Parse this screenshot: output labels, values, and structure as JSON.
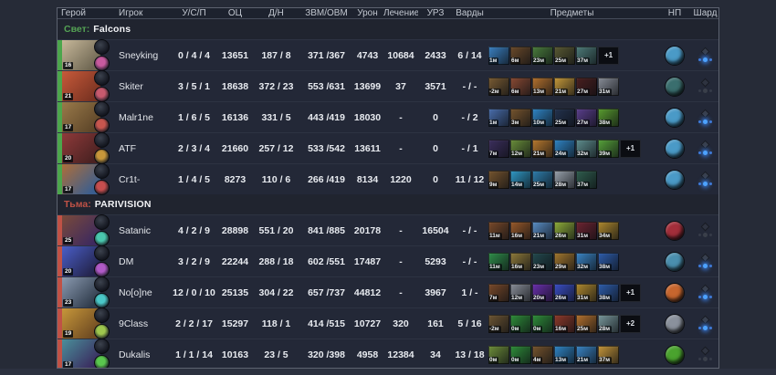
{
  "table": {
    "columns": [
      {
        "key": "hero",
        "label": "Герой"
      },
      {
        "key": "player",
        "label": "Игрок"
      },
      {
        "key": "kda",
        "label": "У/С/П"
      },
      {
        "key": "networth",
        "label": "ОЦ"
      },
      {
        "key": "lastHits",
        "label": "Д/Н"
      },
      {
        "key": "gpmxpm",
        "label": "ЗВМ/ОВМ"
      },
      {
        "key": "damage",
        "label": "Урон"
      },
      {
        "key": "healing",
        "label": "Лечение"
      },
      {
        "key": "buildings",
        "label": "УРЗ"
      },
      {
        "key": "wards",
        "label": "Варды"
      },
      {
        "key": "items",
        "label": "Предметы"
      },
      {
        "key": "neutral",
        "label": "НП"
      },
      {
        "key": "shard",
        "label": "Шард"
      }
    ],
    "teams": [
      {
        "side_label": "Свет:",
        "name": "Falcons",
        "side_color": "#54a254",
        "bar_color": "#4ca64c",
        "players": [
          {
            "name": "Sneyking",
            "level": "16",
            "kda": "0 / 4 / 4",
            "networth": "13651",
            "lh_dn": "187 / 8",
            "gpm_xpm": "371 /367",
            "damage": "4743",
            "healing": "10684",
            "buildings": "2433",
            "wards": "6 / 14",
            "portrait": [
              "#c7b89a",
              "#6e6652"
            ],
            "medal_color": "#c75a9e",
            "items": [
              {
                "t": "1м",
                "c": "#3b82c4"
              },
              {
                "t": "6м",
                "c": "#6b4a2a"
              },
              {
                "t": "23м",
                "c": "#4a7d3c"
              },
              {
                "t": "25м",
                "c": "#5a5a33"
              },
              {
                "t": "37м",
                "c": "#4e7d7a"
              }
            ],
            "backpack": "+1",
            "neutral_color": "#4a9ac7",
            "shard": true
          },
          {
            "name": "Skiter",
            "level": "21",
            "kda": "3 / 5 / 1",
            "networth": "18638",
            "lh_dn": "372 / 23",
            "gpm_xpm": "553 /631",
            "damage": "13699",
            "healing": "37",
            "buildings": "3571",
            "wards": "- / -",
            "portrait": [
              "#c75a3a",
              "#7a3322"
            ],
            "medal_color": "#c75a6e",
            "items": [
              {
                "t": "-2м",
                "c": "#7a5c33"
              },
              {
                "t": "6м",
                "c": "#8a4a33"
              },
              {
                "t": "13м",
                "c": "#b5722e"
              },
              {
                "t": "21м",
                "c": "#c79a3a"
              },
              {
                "t": "27м",
                "c": "#4a1f1f"
              },
              {
                "t": "31м",
                "c": "#8a8f99"
              }
            ],
            "backpack": null,
            "neutral_color": "#3a6e6e",
            "shard": false
          },
          {
            "name": "Malr1ne",
            "level": "17",
            "kda": "1 / 6 / 5",
            "networth": "16136",
            "lh_dn": "331 / 5",
            "gpm_xpm": "443 /419",
            "damage": "18030",
            "healing": "-",
            "buildings": "0",
            "wards": "- / 2",
            "portrait": [
              "#9a7a4a",
              "#5e4629"
            ],
            "medal_color": "#c7564e",
            "items": [
              {
                "t": "1м",
                "c": "#4a6fae"
              },
              {
                "t": "3м",
                "c": "#77552e"
              },
              {
                "t": "10м",
                "c": "#2f86c7"
              },
              {
                "t": "25м",
                "c": "#23324e"
              },
              {
                "t": "27м",
                "c": "#5b3f8e"
              },
              {
                "t": "38м",
                "c": "#5a9e2f"
              }
            ],
            "backpack": null,
            "neutral_color": "#4a9ac7",
            "shard": true
          },
          {
            "name": "ATF",
            "level": "20",
            "kda": "2 / 3 / 4",
            "networth": "21660",
            "lh_dn": "257 / 12",
            "gpm_xpm": "533 /542",
            "damage": "13611",
            "healing": "-",
            "buildings": "0",
            "wards": "- / 1",
            "portrait": [
              "#8f3a3a",
              "#4a2222"
            ],
            "medal_color": "#c7973a",
            "items": [
              {
                "t": "7м",
                "c": "#3c2f5e"
              },
              {
                "t": "12м",
                "c": "#6a8f3a"
              },
              {
                "t": "21м",
                "c": "#b97a2e"
              },
              {
                "t": "24м",
                "c": "#2f86c7"
              },
              {
                "t": "32м",
                "c": "#5f8f8f"
              },
              {
                "t": "39м",
                "c": "#57a33a"
              }
            ],
            "backpack": "+1",
            "neutral_color": "#4a9ac7",
            "shard": true
          },
          {
            "name": "Cr1t-",
            "level": "17",
            "kda": "1 / 4 / 5",
            "networth": "8273",
            "lh_dn": "110 / 6",
            "gpm_xpm": "266 /419",
            "damage": "8134",
            "healing": "1220",
            "buildings": "0",
            "wards": "11 / 12",
            "portrait": [
              "#ae6e3a",
              "#3a5e8f"
            ],
            "medal_color": "#c74e4e",
            "items": [
              {
                "t": "9м",
                "c": "#77552e"
              },
              {
                "t": "14м",
                "c": "#2f9ac7"
              },
              {
                "t": "25м",
                "c": "#2e7fae"
              },
              {
                "t": "28м",
                "c": "#9aa3ad"
              },
              {
                "t": "37м",
                "c": "#2f5e4e"
              }
            ],
            "backpack": null,
            "neutral_color": "#4a9ac7",
            "shard": true
          }
        ]
      },
      {
        "side_label": "Тьма:",
        "name": "PARIVISION",
        "side_color": "#c05246",
        "bar_color": "#c05246",
        "players": [
          {
            "name": "Satanic",
            "level": "25",
            "kda": "4 / 2 / 9",
            "networth": "28898",
            "lh_dn": "551 / 20",
            "gpm_xpm": "841 /885",
            "damage": "20178",
            "healing": "-",
            "buildings": "16504",
            "wards": "- / -",
            "portrait": [
              "#7a4a3a",
              "#3e2a5e"
            ],
            "medal_color": "#4ac7ae",
            "items": [
              {
                "t": "11м",
                "c": "#7a4a2a"
              },
              {
                "t": "16м",
                "c": "#9a5a2a"
              },
              {
                "t": "21м",
                "c": "#5a8fc7"
              },
              {
                "t": "26м",
                "c": "#8fae3a"
              },
              {
                "t": "31м",
                "c": "#6e2431"
              },
              {
                "t": "34м",
                "c": "#b08a2e"
              }
            ],
            "backpack": null,
            "neutral_color": "#a32e3a",
            "shard": false
          },
          {
            "name": "DM",
            "level": "20",
            "kda": "3 / 2 / 9",
            "networth": "22244",
            "lh_dn": "288 / 18",
            "gpm_xpm": "602 /551",
            "damage": "17487",
            "healing": "-",
            "buildings": "5293",
            "wards": "- / -",
            "portrait": [
              "#4a5ec7",
              "#23234a"
            ],
            "medal_color": "#b05ac7",
            "items": [
              {
                "t": "11м",
                "c": "#2f8f4a"
              },
              {
                "t": "16м",
                "c": "#8f7a3a"
              },
              {
                "t": "23м",
                "c": "#23494e"
              },
              {
                "t": "29м",
                "c": "#a3772e"
              },
              {
                "t": "32м",
                "c": "#3a86c7"
              },
              {
                "t": "38м",
                "c": "#2e5eae"
              }
            ],
            "backpack": null,
            "neutral_color": "#4a8fae",
            "shard": true
          },
          {
            "name": "No[o]ne",
            "level": "23",
            "kda": "12 / 0 / 10",
            "networth": "25135",
            "lh_dn": "304 / 22",
            "gpm_xpm": "657 /737",
            "damage": "44812",
            "healing": "-",
            "buildings": "3967",
            "wards": "1 / -",
            "portrait": [
              "#8a9ab0",
              "#2e3a4a"
            ],
            "medal_color": "#4ac7c7",
            "items": [
              {
                "t": "7м",
                "c": "#7a4a2a"
              },
              {
                "t": "12м",
                "c": "#8a8f99"
              },
              {
                "t": "20м",
                "c": "#6a2fae"
              },
              {
                "t": "26м",
                "c": "#3a4ec7"
              },
              {
                "t": "31м",
                "c": "#b08a2e"
              },
              {
                "t": "38м",
                "c": "#2e5eae"
              }
            ],
            "backpack": "+1",
            "neutral_color": "#c7662e",
            "shard": true
          },
          {
            "name": "9Class",
            "level": "19",
            "kda": "2 / 2 / 17",
            "networth": "15297",
            "lh_dn": "118 / 1",
            "gpm_xpm": "414 /515",
            "damage": "10727",
            "healing": "320",
            "buildings": "161",
            "wards": "5 / 16",
            "portrait": [
              "#c7973a",
              "#6e4a22"
            ],
            "medal_color": "#9ec74e",
            "items": [
              {
                "t": "-2м",
                "c": "#6e5633"
              },
              {
                "t": "0м",
                "c": "#2f8f3a"
              },
              {
                "t": "0м",
                "c": "#2f8f3a"
              },
              {
                "t": "16м",
                "c": "#8f3a2a"
              },
              {
                "t": "25м",
                "c": "#b5722e"
              },
              {
                "t": "28м",
                "c": "#7a9a9e"
              }
            ],
            "backpack": "+2",
            "neutral_color": "#8a919c",
            "shard": true
          },
          {
            "name": "Dukalis",
            "level": "17",
            "kda": "1 / 1 / 14",
            "networth": "10163",
            "lh_dn": "23 / 5",
            "gpm_xpm": "320 /398",
            "damage": "4958",
            "healing": "12384",
            "buildings": "34",
            "wards": "13 / 18",
            "portrait": [
              "#4a8f9a",
              "#3a2a5e"
            ],
            "medal_color": "#5ac74e",
            "items": [
              {
                "t": "0м",
                "c": "#6e8f3a"
              },
              {
                "t": "0м",
                "c": "#2f8f3a"
              },
              {
                "t": "4м",
                "c": "#77552e"
              },
              {
                "t": "13м",
                "c": "#2f86c7"
              },
              {
                "t": "21м",
                "c": "#3a86c7"
              },
              {
                "t": "37м",
                "c": "#c7973a"
              }
            ],
            "backpack": null,
            "neutral_color": "#4aa32e",
            "shard": false
          }
        ]
      }
    ]
  }
}
